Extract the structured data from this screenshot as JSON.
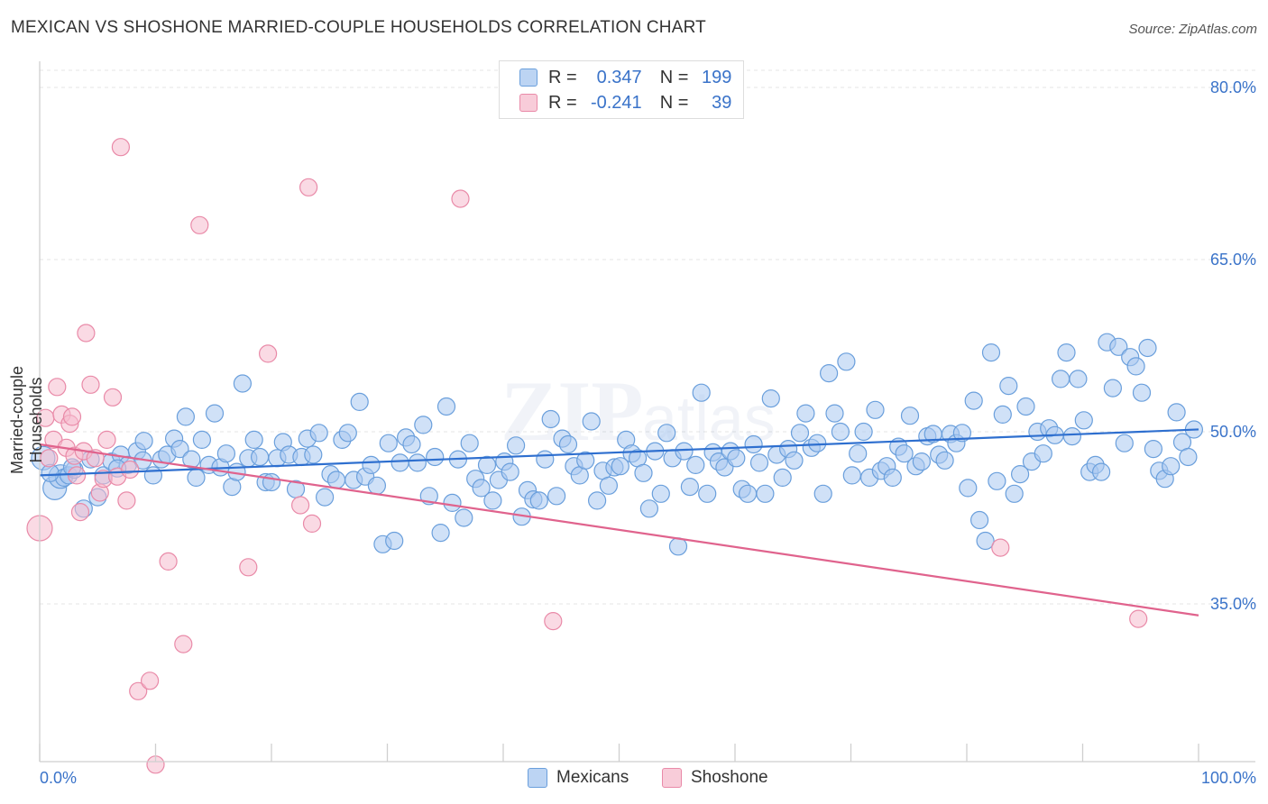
{
  "title": "MEXICAN VS SHOSHONE MARRIED-COUPLE HOUSEHOLDS CORRELATION CHART",
  "source": "Source: ZipAtlas.com",
  "legend": {
    "r_label": "R =",
    "n_label": "N =",
    "series1": {
      "r": "0.347",
      "n": "199"
    },
    "series2": {
      "r": "-0.241",
      "n": "39"
    }
  },
  "bottom_legend": {
    "s1": "Mexicans",
    "s2": "Shoshone"
  },
  "axes": {
    "ylabel": "Married-couple Households",
    "x_min_label": "0.0%",
    "x_max_label": "100.0%",
    "y_ticks": [
      "80.0%",
      "65.0%",
      "50.0%",
      "35.0%"
    ]
  },
  "colors": {
    "blue_fill": "#a9c8f0",
    "blue_stroke": "#6a9fdc",
    "blue_line": "#2e6fcf",
    "pink_fill": "#f6bccd",
    "pink_stroke": "#e98aa8",
    "pink_line": "#e0638d"
  },
  "chart_data": {
    "type": "scatter",
    "xlabel": "",
    "ylabel": "Married-couple Households",
    "xlim": [
      0,
      100
    ],
    "ylim": [
      20.5,
      83
    ],
    "y_ticks": [
      35,
      50,
      65,
      80
    ],
    "grid": true,
    "legend_position": "top-center",
    "series": [
      {
        "name": "Mexicans",
        "r": 0.347,
        "n": 199,
        "trend": [
          [
            0,
            46.2
          ],
          [
            100,
            50.2
          ]
        ],
        "points": [
          [
            0.3,
            47.7
          ],
          [
            1.3,
            45.1
          ],
          [
            1.8,
            46.1
          ],
          [
            2.1,
            46.0
          ],
          [
            2.5,
            46.2
          ],
          [
            3.0,
            46.7
          ],
          [
            3.8,
            43.3
          ],
          [
            5.0,
            44.3
          ],
          [
            5.5,
            46.2
          ],
          [
            6.2,
            47.4
          ],
          [
            7.0,
            48.0
          ],
          [
            7.6,
            47.1
          ],
          [
            8.4,
            48.3
          ],
          [
            9.0,
            49.2
          ],
          [
            9.8,
            46.2
          ],
          [
            10.5,
            47.6
          ],
          [
            11.0,
            48.0
          ],
          [
            11.6,
            49.4
          ],
          [
            12.1,
            48.5
          ],
          [
            12.6,
            51.3
          ],
          [
            13.1,
            47.6
          ],
          [
            13.5,
            46.0
          ],
          [
            14.0,
            49.3
          ],
          [
            14.6,
            47.1
          ],
          [
            15.1,
            51.6
          ],
          [
            15.6,
            46.9
          ],
          [
            16.1,
            48.1
          ],
          [
            16.6,
            45.2
          ],
          [
            17.0,
            46.5
          ],
          [
            17.5,
            54.2
          ],
          [
            18.0,
            47.7
          ],
          [
            18.5,
            49.3
          ],
          [
            19.0,
            47.8
          ],
          [
            19.5,
            45.6
          ],
          [
            20.0,
            45.6
          ],
          [
            20.5,
            47.7
          ],
          [
            21.0,
            49.1
          ],
          [
            21.5,
            48.0
          ],
          [
            22.1,
            45.0
          ],
          [
            22.6,
            47.8
          ],
          [
            23.1,
            49.4
          ],
          [
            23.6,
            48.0
          ],
          [
            24.1,
            49.9
          ],
          [
            24.6,
            44.3
          ],
          [
            25.1,
            46.3
          ],
          [
            25.6,
            45.8
          ],
          [
            26.1,
            49.3
          ],
          [
            26.6,
            49.9
          ],
          [
            27.1,
            45.8
          ],
          [
            27.6,
            52.6
          ],
          [
            28.1,
            46.1
          ],
          [
            28.6,
            47.1
          ],
          [
            29.1,
            45.3
          ],
          [
            29.6,
            40.2
          ],
          [
            30.1,
            49.0
          ],
          [
            30.6,
            40.5
          ],
          [
            31.1,
            47.3
          ],
          [
            31.6,
            49.5
          ],
          [
            32.1,
            48.9
          ],
          [
            32.6,
            47.3
          ],
          [
            33.1,
            50.6
          ],
          [
            33.6,
            44.4
          ],
          [
            34.1,
            47.8
          ],
          [
            34.6,
            41.2
          ],
          [
            35.1,
            52.2
          ],
          [
            35.6,
            43.8
          ],
          [
            36.1,
            47.6
          ],
          [
            36.6,
            42.5
          ],
          [
            37.1,
            49.0
          ],
          [
            37.6,
            45.9
          ],
          [
            38.1,
            45.1
          ],
          [
            38.6,
            47.1
          ],
          [
            39.1,
            44.0
          ],
          [
            39.6,
            45.8
          ],
          [
            40.1,
            47.4
          ],
          [
            40.6,
            46.5
          ],
          [
            41.1,
            48.8
          ],
          [
            41.6,
            42.6
          ],
          [
            42.1,
            44.9
          ],
          [
            42.6,
            44.1
          ],
          [
            43.1,
            44.0
          ],
          [
            43.6,
            47.6
          ],
          [
            44.1,
            51.1
          ],
          [
            44.6,
            44.4
          ],
          [
            45.1,
            49.4
          ],
          [
            45.6,
            48.9
          ],
          [
            46.1,
            47.0
          ],
          [
            46.6,
            46.2
          ],
          [
            47.1,
            47.5
          ],
          [
            47.6,
            50.9
          ],
          [
            48.1,
            44.0
          ],
          [
            48.6,
            46.6
          ],
          [
            49.1,
            45.3
          ],
          [
            49.6,
            46.9
          ],
          [
            50.1,
            47.0
          ],
          [
            50.6,
            49.3
          ],
          [
            51.1,
            48.1
          ],
          [
            51.6,
            47.7
          ],
          [
            52.1,
            46.4
          ],
          [
            52.6,
            43.3
          ],
          [
            53.1,
            48.3
          ],
          [
            53.6,
            44.6
          ],
          [
            54.1,
            49.9
          ],
          [
            54.6,
            47.7
          ],
          [
            55.1,
            40.0
          ],
          [
            55.6,
            48.3
          ],
          [
            56.1,
            45.2
          ],
          [
            56.6,
            47.1
          ],
          [
            57.1,
            53.4
          ],
          [
            57.6,
            44.6
          ],
          [
            58.1,
            48.2
          ],
          [
            58.6,
            47.4
          ],
          [
            59.1,
            46.9
          ],
          [
            59.6,
            48.3
          ],
          [
            60.1,
            47.7
          ],
          [
            60.6,
            45.0
          ],
          [
            61.1,
            44.6
          ],
          [
            61.6,
            48.9
          ],
          [
            62.1,
            47.3
          ],
          [
            62.6,
            44.6
          ],
          [
            63.1,
            52.9
          ],
          [
            63.6,
            48.0
          ],
          [
            64.1,
            46.0
          ],
          [
            64.6,
            48.5
          ],
          [
            65.1,
            47.5
          ],
          [
            65.6,
            49.9
          ],
          [
            66.1,
            51.6
          ],
          [
            66.6,
            48.6
          ],
          [
            67.1,
            49.0
          ],
          [
            67.6,
            44.6
          ],
          [
            68.1,
            55.1
          ],
          [
            68.6,
            51.6
          ],
          [
            69.1,
            50.0
          ],
          [
            69.6,
            56.1
          ],
          [
            70.1,
            46.2
          ],
          [
            70.6,
            48.1
          ],
          [
            71.1,
            50.0
          ],
          [
            71.6,
            46.0
          ],
          [
            72.1,
            51.9
          ],
          [
            72.6,
            46.6
          ],
          [
            73.1,
            47.0
          ],
          [
            73.6,
            46.0
          ],
          [
            74.1,
            48.7
          ],
          [
            74.6,
            48.1
          ],
          [
            75.1,
            51.4
          ],
          [
            75.6,
            47.0
          ],
          [
            76.1,
            47.4
          ],
          [
            76.6,
            49.6
          ],
          [
            77.1,
            49.8
          ],
          [
            77.6,
            48.0
          ],
          [
            78.1,
            47.5
          ],
          [
            78.6,
            49.8
          ],
          [
            79.1,
            49.0
          ],
          [
            79.6,
            49.9
          ],
          [
            80.1,
            45.1
          ],
          [
            80.6,
            52.7
          ],
          [
            81.1,
            42.3
          ],
          [
            81.6,
            40.5
          ],
          [
            82.1,
            56.9
          ],
          [
            82.6,
            45.7
          ],
          [
            83.1,
            51.5
          ],
          [
            83.6,
            54.0
          ],
          [
            84.1,
            44.6
          ],
          [
            84.6,
            46.3
          ],
          [
            85.1,
            52.2
          ],
          [
            85.6,
            47.4
          ],
          [
            86.1,
            50.0
          ],
          [
            86.6,
            48.1
          ],
          [
            87.1,
            50.3
          ],
          [
            87.6,
            49.7
          ],
          [
            88.1,
            54.6
          ],
          [
            88.6,
            56.9
          ],
          [
            89.1,
            49.6
          ],
          [
            89.6,
            54.6
          ],
          [
            90.1,
            51.0
          ],
          [
            90.6,
            46.5
          ],
          [
            91.1,
            47.1
          ],
          [
            91.6,
            46.5
          ],
          [
            92.1,
            57.8
          ],
          [
            92.6,
            53.8
          ],
          [
            93.1,
            57.4
          ],
          [
            93.6,
            49.0
          ],
          [
            94.1,
            56.5
          ],
          [
            94.6,
            55.7
          ],
          [
            95.1,
            53.4
          ],
          [
            95.6,
            57.3
          ],
          [
            96.1,
            48.5
          ],
          [
            96.6,
            46.6
          ],
          [
            97.1,
            45.9
          ],
          [
            97.6,
            47.0
          ],
          [
            98.1,
            51.7
          ],
          [
            98.6,
            49.1
          ],
          [
            99.1,
            47.8
          ],
          [
            99.6,
            50.2
          ],
          [
            0.9,
            46.4
          ],
          [
            2.8,
            46.9
          ],
          [
            4.4,
            47.6
          ],
          [
            6.7,
            46.8
          ],
          [
            8.9,
            47.5
          ]
        ]
      },
      {
        "name": "Shoshone",
        "r": -0.241,
        "n": 39,
        "trend": [
          [
            0,
            48.9
          ],
          [
            100,
            34.0
          ]
        ],
        "points": [
          [
            0.0,
            41.6
          ],
          [
            0.5,
            51.2
          ],
          [
            0.8,
            47.7
          ],
          [
            1.2,
            49.3
          ],
          [
            1.5,
            53.9
          ],
          [
            1.9,
            51.5
          ],
          [
            2.3,
            48.6
          ],
          [
            2.6,
            50.7
          ],
          [
            2.8,
            51.3
          ],
          [
            3.0,
            47.9
          ],
          [
            3.2,
            46.2
          ],
          [
            3.5,
            43.0
          ],
          [
            3.8,
            48.3
          ],
          [
            4.0,
            58.6
          ],
          [
            4.4,
            54.1
          ],
          [
            4.8,
            47.7
          ],
          [
            5.2,
            44.7
          ],
          [
            5.5,
            45.9
          ],
          [
            5.8,
            49.3
          ],
          [
            6.3,
            53.0
          ],
          [
            6.7,
            46.1
          ],
          [
            7.0,
            74.8
          ],
          [
            7.5,
            44.0
          ],
          [
            7.8,
            46.7
          ],
          [
            8.5,
            27.4
          ],
          [
            9.5,
            28.3
          ],
          [
            10.0,
            21.0
          ],
          [
            11.1,
            38.7
          ],
          [
            12.4,
            31.5
          ],
          [
            13.8,
            68.0
          ],
          [
            18.0,
            38.2
          ],
          [
            19.7,
            56.8
          ],
          [
            22.5,
            43.6
          ],
          [
            23.2,
            71.3
          ],
          [
            23.5,
            42.0
          ],
          [
            36.3,
            70.3
          ],
          [
            44.3,
            33.5
          ],
          [
            82.9,
            39.9
          ],
          [
            94.8,
            33.7
          ]
        ]
      }
    ]
  }
}
